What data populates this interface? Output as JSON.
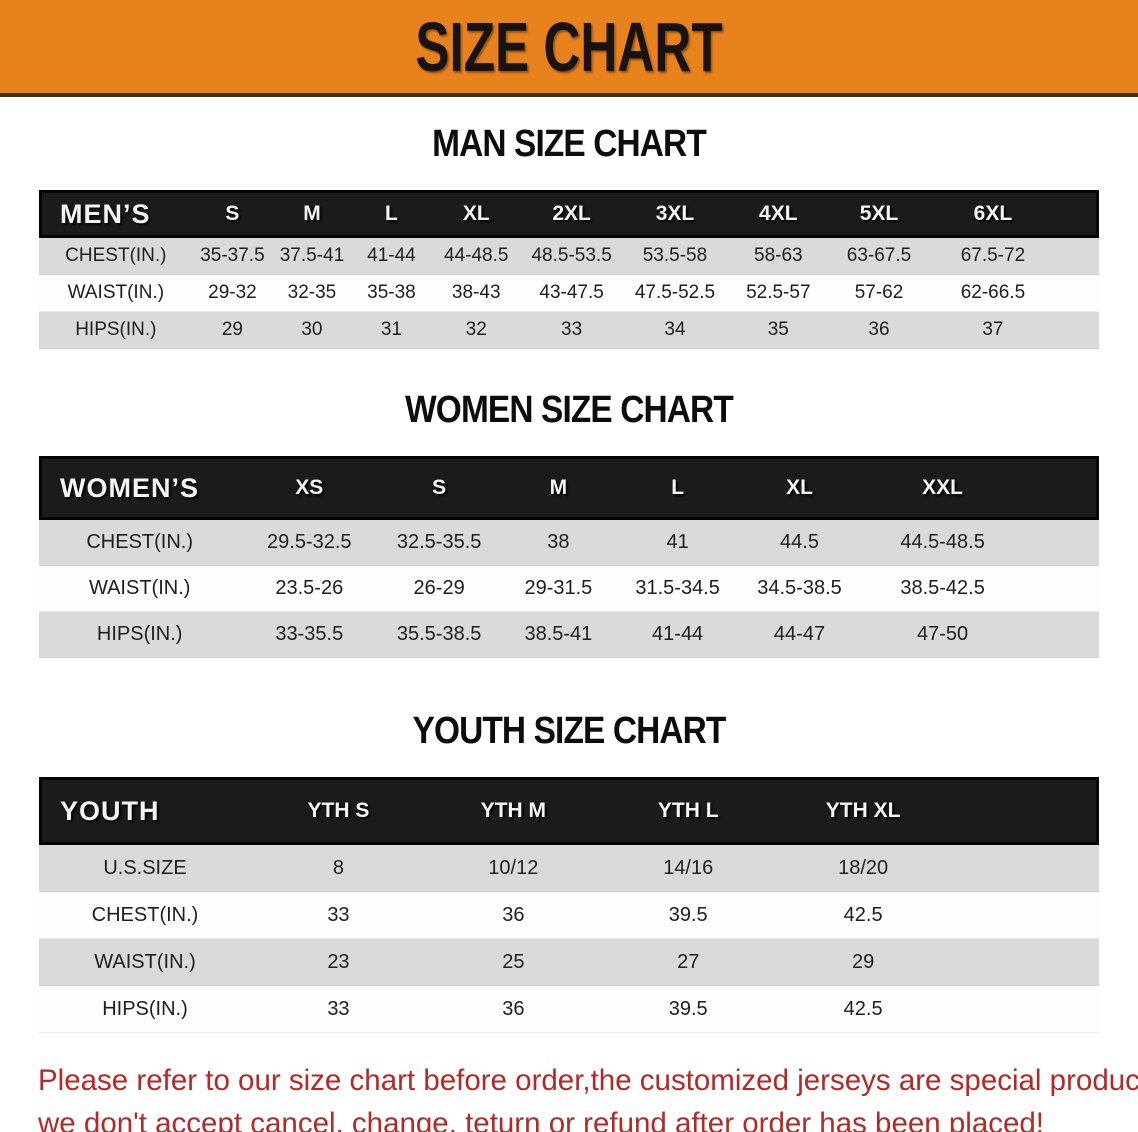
{
  "banner": {
    "title": "SIZE CHART",
    "bg_color": "#e8821c",
    "text_color": "#161310"
  },
  "sections": [
    {
      "title": "MAN SIZE CHART",
      "header_label": "MEN’S",
      "columns": [
        "S",
        "M",
        "L",
        "XL",
        "2XL",
        "3XL",
        "4XL",
        "5XL",
        "6XL"
      ],
      "rows": [
        {
          "label": "CHEST(IN.)",
          "values": [
            "35-37.5",
            "37.5-41",
            "41-44",
            "44-48.5",
            "48.5-53.5",
            "53.5-58",
            "58-63",
            "63-67.5",
            "67.5-72"
          ]
        },
        {
          "label": "WAIST(IN.)",
          "values": [
            "29-32",
            "32-35",
            "35-38",
            "38-43",
            "43-47.5",
            "47.5-52.5",
            "52.5-57",
            "57-62",
            "62-66.5"
          ]
        },
        {
          "label": "HIPS(IN.)",
          "values": [
            "29",
            "30",
            "31",
            "32",
            "33",
            "34",
            "35",
            "36",
            "37"
          ]
        }
      ]
    },
    {
      "title": "WOMEN SIZE CHART",
      "header_label": "WOMEN’S",
      "columns": [
        "XS",
        "S",
        "M",
        "L",
        "XL",
        "XXL"
      ],
      "rows": [
        {
          "label": "CHEST(IN.)",
          "values": [
            "29.5-32.5",
            "32.5-35.5",
            "38",
            "41",
            "44.5",
            "44.5-48.5"
          ]
        },
        {
          "label": "WAIST(IN.)",
          "values": [
            "23.5-26",
            "26-29",
            "29-31.5",
            "31.5-34.5",
            "34.5-38.5",
            "38.5-42.5"
          ]
        },
        {
          "label": "HIPS(IN.)",
          "values": [
            "33-35.5",
            "35.5-38.5",
            "38.5-41",
            "41-44",
            "44-47",
            "47-50"
          ]
        }
      ]
    },
    {
      "title": "YOUTH SIZE CHART",
      "header_label": "YOUTH",
      "columns": [
        "YTH S",
        "YTH M",
        "YTH L",
        "YTH XL"
      ],
      "rows": [
        {
          "label": "U.S.SIZE",
          "values": [
            "8",
            "10/12",
            "14/16",
            "18/20"
          ]
        },
        {
          "label": "CHEST(IN.)",
          "values": [
            "33",
            "36",
            "39.5",
            "42.5"
          ]
        },
        {
          "label": "WAIST(IN.)",
          "values": [
            "23",
            "25",
            "27",
            "29"
          ]
        },
        {
          "label": "HIPS(IN.)",
          "values": [
            "33",
            "36",
            "39.5",
            "42.5"
          ]
        }
      ]
    }
  ],
  "disclaimer": {
    "line1": "Please refer to our size chart before order,the customized jerseys are special products,",
    "line2": "we don't accept cancel, change, teturn or refund after order has been placed!",
    "color": "#b22a27"
  },
  "colors": {
    "banner_orange": "#e8821c",
    "header_bar_black": "#1b1b1b",
    "row_gray": "#dadada",
    "row_white": "#fdfdfd",
    "disclaimer_red": "#b22a27"
  }
}
